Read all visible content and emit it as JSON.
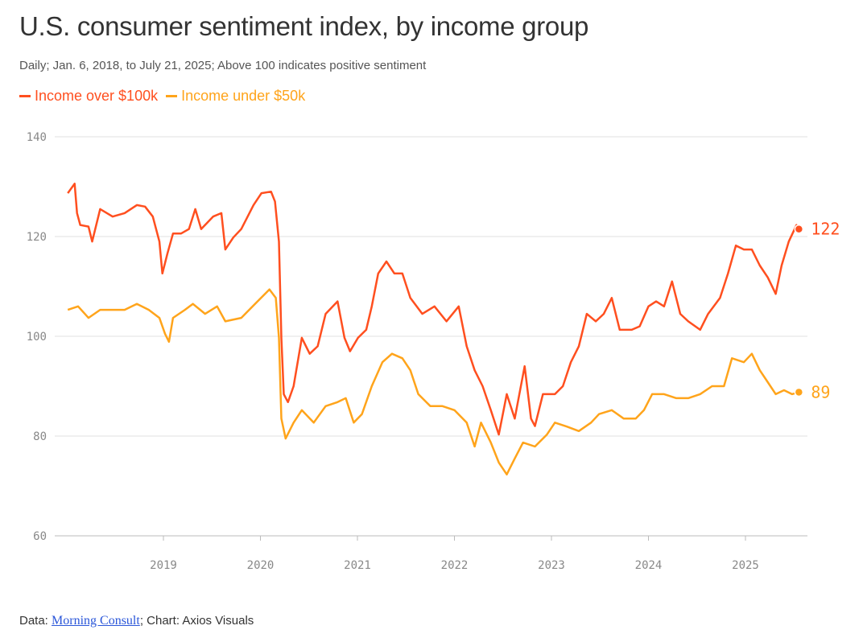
{
  "title": "U.S. consumer sentiment index, by income group",
  "subtitle": "Daily; Jan. 6, 2018, to July 21, 2025; Above 100 indicates positive sentiment",
  "footer": {
    "data_prefix": "Data: ",
    "source_link": "Morning Consult",
    "suffix": "; Chart: Axios Visuals"
  },
  "chart_data": {
    "type": "line",
    "title": "U.S. consumer sentiment index, by income group",
    "xlabel": "",
    "ylabel": "",
    "ylim": [
      60,
      140
    ],
    "y_ticks": [
      "140",
      "120",
      "100",
      "80",
      "60"
    ],
    "x_ticks": [
      "2019",
      "2020",
      "2021",
      "2022",
      "2023",
      "2024",
      "2025"
    ],
    "grid": true,
    "legend": "top-left",
    "series": [
      {
        "name": "Income over $100k",
        "color": "#ff4f1f",
        "end_label": "122",
        "points": [
          [
            "2018-01-06",
            128.7
          ],
          [
            "2018-02-01",
            130.6
          ],
          [
            "2018-02-10",
            124.7
          ],
          [
            "2018-02-22",
            122.3
          ],
          [
            "2018-03-25",
            122
          ],
          [
            "2018-04-08",
            119
          ],
          [
            "2018-05-08",
            125.5
          ],
          [
            "2018-06-24",
            124
          ],
          [
            "2018-08-08",
            124.7
          ],
          [
            "2018-09-23",
            126.3
          ],
          [
            "2018-10-24",
            126
          ],
          [
            "2018-11-22",
            124
          ],
          [
            "2018-12-17",
            119
          ],
          [
            "2018-12-28",
            112.6
          ],
          [
            "2019-01-16",
            116.6
          ],
          [
            "2019-02-06",
            120.6
          ],
          [
            "2019-03-08",
            120.6
          ],
          [
            "2019-04-07",
            121.5
          ],
          [
            "2019-05-01",
            125.5
          ],
          [
            "2019-05-23",
            121.5
          ],
          [
            "2019-07-07",
            124
          ],
          [
            "2019-08-07",
            124.7
          ],
          [
            "2019-08-22",
            117.4
          ],
          [
            "2019-09-21",
            119.8
          ],
          [
            "2019-10-21",
            121.5
          ],
          [
            "2019-12-06",
            126.3
          ],
          [
            "2020-01-05",
            128.7
          ],
          [
            "2020-02-10",
            129
          ],
          [
            "2020-02-25",
            127
          ],
          [
            "2020-03-11",
            119
          ],
          [
            "2020-03-20",
            99.7
          ],
          [
            "2020-03-29",
            88.4
          ],
          [
            "2020-04-14",
            86.8
          ],
          [
            "2020-05-05",
            90
          ],
          [
            "2020-06-05",
            99.7
          ],
          [
            "2020-07-05",
            96.5
          ],
          [
            "2020-08-04",
            98
          ],
          [
            "2020-09-03",
            104.5
          ],
          [
            "2020-10-18",
            107
          ],
          [
            "2020-11-13",
            99.7
          ],
          [
            "2020-12-04",
            97
          ],
          [
            "2021-01-03",
            99.7
          ],
          [
            "2021-02-03",
            101.3
          ],
          [
            "2021-02-24",
            106
          ],
          [
            "2021-03-20",
            112.6
          ],
          [
            "2021-04-20",
            115
          ],
          [
            "2021-05-20",
            112.6
          ],
          [
            "2021-06-19",
            112.6
          ],
          [
            "2021-07-19",
            107.7
          ],
          [
            "2021-09-02",
            104.5
          ],
          [
            "2021-10-18",
            106
          ],
          [
            "2021-12-02",
            103
          ],
          [
            "2022-01-17",
            106
          ],
          [
            "2022-02-16",
            98
          ],
          [
            "2022-03-18",
            93.2
          ],
          [
            "2022-04-17",
            90
          ],
          [
            "2022-05-18",
            85.2
          ],
          [
            "2022-06-17",
            80.3
          ],
          [
            "2022-07-17",
            88.4
          ],
          [
            "2022-08-16",
            83.5
          ],
          [
            "2022-09-22",
            94
          ],
          [
            "2022-10-16",
            83.5
          ],
          [
            "2022-10-31",
            82
          ],
          [
            "2022-11-30",
            88.4
          ],
          [
            "2023-01-14",
            88.4
          ],
          [
            "2023-02-13",
            90
          ],
          [
            "2023-03-15",
            94.8
          ],
          [
            "2023-04-14",
            98
          ],
          [
            "2023-05-14",
            104.5
          ],
          [
            "2023-06-17",
            103
          ],
          [
            "2023-07-17",
            104.5
          ],
          [
            "2023-08-16",
            107.7
          ],
          [
            "2023-09-15",
            101.3
          ],
          [
            "2023-10-30",
            101.3
          ],
          [
            "2023-11-29",
            102
          ],
          [
            "2024-01-01",
            106
          ],
          [
            "2024-01-30",
            107
          ],
          [
            "2024-02-29",
            106
          ],
          [
            "2024-03-30",
            111
          ],
          [
            "2024-04-30",
            104.5
          ],
          [
            "2024-05-30",
            103
          ],
          [
            "2024-07-14",
            101.3
          ],
          [
            "2024-08-13",
            104.5
          ],
          [
            "2024-09-27",
            107.7
          ],
          [
            "2024-10-27",
            112.6
          ],
          [
            "2024-11-26",
            118.2
          ],
          [
            "2024-12-26",
            117.4
          ],
          [
            "2025-01-25",
            117.4
          ],
          [
            "2025-02-24",
            114.2
          ],
          [
            "2025-03-26",
            111.8
          ],
          [
            "2025-04-25",
            108.5
          ],
          [
            "2025-05-17",
            114.2
          ],
          [
            "2025-06-13",
            119
          ],
          [
            "2025-07-12",
            122.3
          ],
          [
            "2025-07-21",
            121.5
          ]
        ]
      },
      {
        "name": "Income under $50k",
        "color": "#ffa41b",
        "end_label": "89",
        "points": [
          [
            "2018-01-06",
            105.3
          ],
          [
            "2018-02-14",
            106
          ],
          [
            "2018-03-25",
            103.7
          ],
          [
            "2018-05-08",
            105.3
          ],
          [
            "2018-06-24",
            105.3
          ],
          [
            "2018-08-08",
            105.3
          ],
          [
            "2018-09-23",
            106.5
          ],
          [
            "2018-11-07",
            105.3
          ],
          [
            "2018-12-17",
            103.7
          ],
          [
            "2019-01-07",
            100.5
          ],
          [
            "2019-01-22",
            98.9
          ],
          [
            "2019-02-06",
            103.7
          ],
          [
            "2019-03-23",
            105.3
          ],
          [
            "2019-04-22",
            106.5
          ],
          [
            "2019-06-07",
            104.5
          ],
          [
            "2019-07-22",
            106
          ],
          [
            "2019-08-22",
            103
          ],
          [
            "2019-10-21",
            103.7
          ],
          [
            "2019-12-21",
            107
          ],
          [
            "2020-02-04",
            109.4
          ],
          [
            "2020-02-28",
            107.7
          ],
          [
            "2020-03-11",
            99.7
          ],
          [
            "2020-03-20",
            83.5
          ],
          [
            "2020-04-05",
            79.5
          ],
          [
            "2020-05-05",
            82.7
          ],
          [
            "2020-06-05",
            85.2
          ],
          [
            "2020-07-20",
            82.7
          ],
          [
            "2020-09-03",
            86
          ],
          [
            "2020-10-18",
            86.8
          ],
          [
            "2020-11-18",
            87.6
          ],
          [
            "2020-12-18",
            82.7
          ],
          [
            "2021-01-18",
            84.4
          ],
          [
            "2021-02-24",
            90
          ],
          [
            "2021-04-05",
            94.8
          ],
          [
            "2021-05-11",
            96.5
          ],
          [
            "2021-06-19",
            95.6
          ],
          [
            "2021-07-19",
            93.2
          ],
          [
            "2021-08-18",
            88.4
          ],
          [
            "2021-10-02",
            86
          ],
          [
            "2021-11-17",
            86
          ],
          [
            "2022-01-01",
            85.2
          ],
          [
            "2022-02-16",
            82.7
          ],
          [
            "2022-03-18",
            77.9
          ],
          [
            "2022-04-11",
            82.7
          ],
          [
            "2022-05-18",
            78.7
          ],
          [
            "2022-06-17",
            74.7
          ],
          [
            "2022-07-17",
            72.3
          ],
          [
            "2022-08-16",
            75.5
          ],
          [
            "2022-09-16",
            78.7
          ],
          [
            "2022-10-31",
            77.9
          ],
          [
            "2022-12-15",
            80.3
          ],
          [
            "2023-01-14",
            82.7
          ],
          [
            "2023-02-28",
            81.9
          ],
          [
            "2023-04-14",
            81
          ],
          [
            "2023-05-30",
            82.7
          ],
          [
            "2023-06-29",
            84.4
          ],
          [
            "2023-08-16",
            85.2
          ],
          [
            "2023-09-30",
            83.5
          ],
          [
            "2023-11-14",
            83.5
          ],
          [
            "2023-12-15",
            85.2
          ],
          [
            "2024-01-15",
            88.4
          ],
          [
            "2024-02-29",
            88.4
          ],
          [
            "2024-04-15",
            87.6
          ],
          [
            "2024-05-30",
            87.6
          ],
          [
            "2024-07-14",
            88.4
          ],
          [
            "2024-08-28",
            90
          ],
          [
            "2024-10-12",
            90
          ],
          [
            "2024-11-11",
            95.6
          ],
          [
            "2024-12-26",
            94.8
          ],
          [
            "2025-01-25",
            96.5
          ],
          [
            "2025-02-24",
            93.2
          ],
          [
            "2025-03-26",
            90.8
          ],
          [
            "2025-04-25",
            88.4
          ],
          [
            "2025-05-26",
            89.2
          ],
          [
            "2025-06-25",
            88.4
          ],
          [
            "2025-07-21",
            88.8
          ]
        ]
      }
    ]
  }
}
